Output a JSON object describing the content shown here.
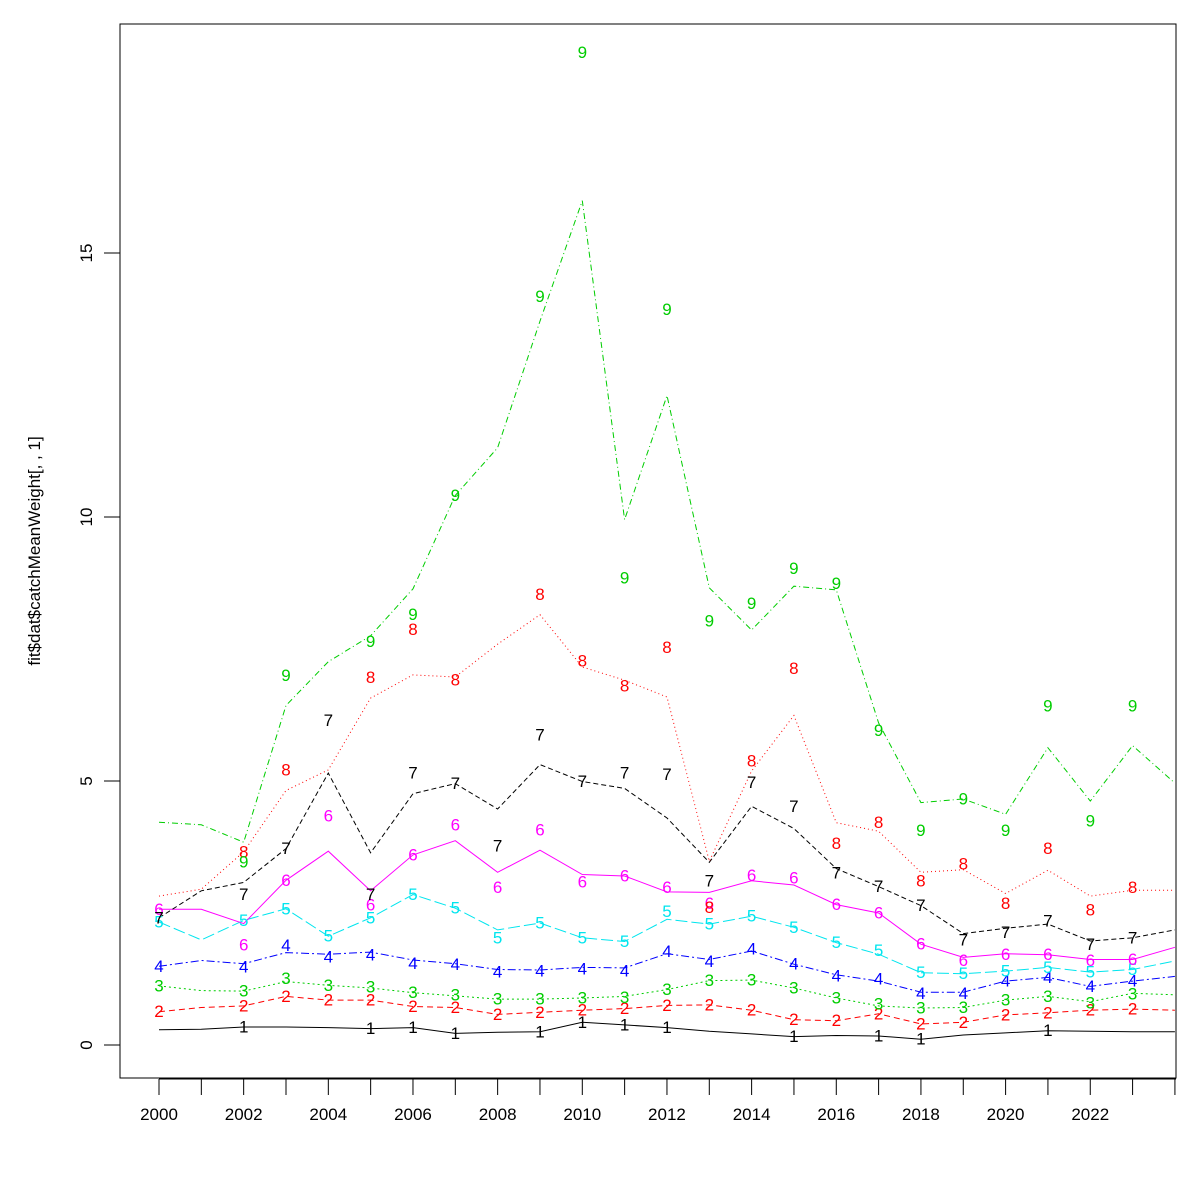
{
  "chart_data": {
    "type": "line",
    "ylabel": "fit$dat$catchMeanWeight[, , 1]",
    "xlabel": "",
    "xlim": [
      2000,
      2024
    ],
    "ylim": [
      0,
      19
    ],
    "x_ticks": [
      2000,
      2002,
      2004,
      2006,
      2008,
      2010,
      2012,
      2014,
      2016,
      2018,
      2020,
      2022
    ],
    "y_ticks": [
      0,
      5,
      10,
      15
    ],
    "x": [
      2000,
      2001,
      2002,
      2003,
      2004,
      2005,
      2006,
      2007,
      2008,
      2009,
      2010,
      2011,
      2012,
      2013,
      2014,
      2015,
      2016,
      2017,
      2018,
      2019,
      2020,
      2021,
      2022,
      2023,
      2024
    ],
    "lines": [
      {
        "color": "#000000",
        "dash": "",
        "values": [
          0.29,
          0.3,
          0.34,
          0.34,
          0.33,
          0.31,
          0.33,
          0.22,
          0.24,
          0.25,
          0.43,
          0.38,
          0.33,
          0.26,
          0.21,
          0.16,
          0.18,
          0.17,
          0.11,
          0.19,
          0.23,
          0.27,
          0.26,
          0.25,
          0.25
        ]
      },
      {
        "color": "#ff0000",
        "dash": "6,4",
        "values": [
          0.63,
          0.71,
          0.74,
          0.92,
          0.85,
          0.85,
          0.73,
          0.71,
          0.58,
          0.62,
          0.66,
          0.69,
          0.75,
          0.76,
          0.66,
          0.48,
          0.46,
          0.59,
          0.4,
          0.43,
          0.57,
          0.61,
          0.66,
          0.68,
          0.66
        ]
      },
      {
        "color": "#00cd00",
        "dash": "2,3",
        "values": [
          1.12,
          1.03,
          1.02,
          1.2,
          1.13,
          1.08,
          0.99,
          0.93,
          0.87,
          0.87,
          0.89,
          0.92,
          1.05,
          1.22,
          1.23,
          1.08,
          0.89,
          0.74,
          0.7,
          0.71,
          0.85,
          0.92,
          0.82,
          0.98,
          0.95
        ]
      },
      {
        "color": "#0000ff",
        "dash": "8,3,2,3",
        "values": [
          1.49,
          1.6,
          1.54,
          1.75,
          1.72,
          1.76,
          1.61,
          1.54,
          1.43,
          1.42,
          1.47,
          1.46,
          1.73,
          1.62,
          1.78,
          1.53,
          1.33,
          1.21,
          1.0,
          1.0,
          1.21,
          1.28,
          1.11,
          1.21,
          1.3
        ]
      },
      {
        "color": "#00e5ee",
        "dash": "12,4",
        "values": [
          2.33,
          1.99,
          2.36,
          2.58,
          2.06,
          2.41,
          2.85,
          2.59,
          2.18,
          2.31,
          2.03,
          1.96,
          2.38,
          2.29,
          2.44,
          2.23,
          1.94,
          1.72,
          1.37,
          1.35,
          1.4,
          1.47,
          1.38,
          1.43,
          1.59
        ]
      },
      {
        "color": "#ff00ff",
        "dash": "",
        "values": [
          2.57,
          2.57,
          2.3,
          3.12,
          3.67,
          2.92,
          3.6,
          3.87,
          3.27,
          3.69,
          3.23,
          3.2,
          2.9,
          2.89,
          3.11,
          3.03,
          2.66,
          2.5,
          1.91,
          1.66,
          1.73,
          1.71,
          1.62,
          1.62,
          1.85
        ]
      },
      {
        "color": "#000000",
        "dash": "5,3",
        "values": [
          2.41,
          2.92,
          3.08,
          3.72,
          5.15,
          3.64,
          4.76,
          4.95,
          4.47,
          5.31,
          4.99,
          4.86,
          4.3,
          3.46,
          4.52,
          4.1,
          3.34,
          3.0,
          2.64,
          2.11,
          2.21,
          2.29,
          1.97,
          2.03,
          2.18
        ]
      },
      {
        "color": "#ff0000",
        "dash": "1,3",
        "values": [
          2.82,
          2.95,
          3.66,
          4.82,
          5.21,
          6.57,
          7.01,
          6.97,
          7.59,
          8.15,
          7.16,
          6.91,
          6.59,
          3.48,
          5.19,
          6.24,
          4.21,
          4.05,
          3.27,
          3.32,
          2.87,
          3.31,
          2.82,
          2.93,
          2.93
        ]
      },
      {
        "color": "#00cd00",
        "dash": "6,3,1,3",
        "values": [
          4.22,
          4.17,
          3.84,
          6.43,
          7.26,
          7.75,
          8.64,
          10.41,
          11.31,
          13.71,
          15.99,
          9.95,
          12.3,
          8.66,
          7.86,
          8.69,
          8.62,
          6.1,
          4.59,
          4.66,
          4.37,
          5.63,
          4.62,
          5.67,
          4.96
        ]
      }
    ],
    "markers": [
      {
        "label": "1",
        "color": "#000000",
        "points": [
          [
            2002,
            0.34
          ],
          [
            2005,
            0.31
          ],
          [
            2006,
            0.33
          ],
          [
            2007,
            0.22
          ],
          [
            2009,
            0.25
          ],
          [
            2010,
            0.43
          ],
          [
            2011,
            0.38
          ],
          [
            2012,
            0.33
          ],
          [
            2015,
            0.16
          ],
          [
            2017,
            0.17
          ],
          [
            2018,
            0.11
          ],
          [
            2021,
            0.27
          ]
        ]
      },
      {
        "label": "2",
        "color": "#ff0000",
        "points": [
          [
            2000,
            0.63
          ],
          [
            2002,
            0.74
          ],
          [
            2003,
            0.92
          ],
          [
            2004,
            0.85
          ],
          [
            2005,
            0.85
          ],
          [
            2006,
            0.73
          ],
          [
            2007,
            0.71
          ],
          [
            2008,
            0.58
          ],
          [
            2009,
            0.62
          ],
          [
            2010,
            0.66
          ],
          [
            2011,
            0.69
          ],
          [
            2012,
            0.75
          ],
          [
            2013,
            0.76
          ],
          [
            2014,
            0.66
          ],
          [
            2015,
            0.48
          ],
          [
            2016,
            0.46
          ],
          [
            2017,
            0.59
          ],
          [
            2018,
            0.4
          ],
          [
            2019,
            0.43
          ],
          [
            2020,
            0.57
          ],
          [
            2021,
            0.61
          ],
          [
            2022,
            0.66
          ],
          [
            2023,
            0.68
          ]
        ]
      },
      {
        "label": "3",
        "color": "#00cd00",
        "points": [
          [
            2000,
            1.12
          ],
          [
            2002,
            1.02
          ],
          [
            2003,
            1.26
          ],
          [
            2004,
            1.13
          ],
          [
            2005,
            1.1
          ],
          [
            2006,
            0.99
          ],
          [
            2007,
            0.95
          ],
          [
            2008,
            0.87
          ],
          [
            2009,
            0.87
          ],
          [
            2010,
            0.89
          ],
          [
            2011,
            0.9
          ],
          [
            2012,
            1.05
          ],
          [
            2013,
            1.22
          ],
          [
            2014,
            1.23
          ],
          [
            2015,
            1.08
          ],
          [
            2016,
            0.89
          ],
          [
            2017,
            0.78
          ],
          [
            2018,
            0.7
          ],
          [
            2019,
            0.71
          ],
          [
            2020,
            0.85
          ],
          [
            2021,
            0.92
          ],
          [
            2022,
            0.8
          ],
          [
            2023,
            0.97
          ]
        ]
      },
      {
        "label": "4",
        "color": "#0000ff",
        "points": [
          [
            2000,
            1.49
          ],
          [
            2002,
            1.48
          ],
          [
            2003,
            1.88
          ],
          [
            2004,
            1.67
          ],
          [
            2005,
            1.7
          ],
          [
            2006,
            1.54
          ],
          [
            2007,
            1.52
          ],
          [
            2008,
            1.38
          ],
          [
            2009,
            1.4
          ],
          [
            2010,
            1.44
          ],
          [
            2011,
            1.4
          ],
          [
            2012,
            1.77
          ],
          [
            2013,
            1.58
          ],
          [
            2014,
            1.82
          ],
          [
            2015,
            1.53
          ],
          [
            2016,
            1.31
          ],
          [
            2017,
            1.25
          ],
          [
            2018,
            0.98
          ],
          [
            2019,
            0.98
          ],
          [
            2020,
            1.21
          ],
          [
            2021,
            1.28
          ],
          [
            2022,
            1.11
          ],
          [
            2023,
            1.21
          ]
        ]
      },
      {
        "label": "5",
        "color": "#00e5ee",
        "points": [
          [
            2000,
            2.33
          ],
          [
            2002,
            2.36
          ],
          [
            2003,
            2.58
          ],
          [
            2004,
            2.06
          ],
          [
            2005,
            2.41
          ],
          [
            2006,
            2.85
          ],
          [
            2007,
            2.59
          ],
          [
            2008,
            2.03
          ],
          [
            2009,
            2.31
          ],
          [
            2010,
            2.03
          ],
          [
            2011,
            1.96
          ],
          [
            2012,
            2.53
          ],
          [
            2013,
            2.29
          ],
          [
            2014,
            2.44
          ],
          [
            2015,
            2.23
          ],
          [
            2016,
            1.94
          ],
          [
            2017,
            1.79
          ],
          [
            2018,
            1.37
          ],
          [
            2019,
            1.35
          ],
          [
            2020,
            1.4
          ],
          [
            2021,
            1.47
          ],
          [
            2022,
            1.38
          ],
          [
            2023,
            1.43
          ]
        ]
      },
      {
        "label": "6",
        "color": "#ff00ff",
        "points": [
          [
            2000,
            2.57
          ],
          [
            2002,
            1.89
          ],
          [
            2003,
            3.12
          ],
          [
            2004,
            4.34
          ],
          [
            2005,
            2.65
          ],
          [
            2006,
            3.6
          ],
          [
            2007,
            4.17
          ],
          [
            2008,
            2.98
          ],
          [
            2009,
            4.07
          ],
          [
            2010,
            3.09
          ],
          [
            2011,
            3.2
          ],
          [
            2012,
            2.98
          ],
          [
            2013,
            2.68
          ],
          [
            2014,
            3.21
          ],
          [
            2015,
            3.16
          ],
          [
            2016,
            2.66
          ],
          [
            2017,
            2.5
          ],
          [
            2018,
            1.91
          ],
          [
            2019,
            1.6
          ],
          [
            2020,
            1.71
          ],
          [
            2021,
            1.71
          ],
          [
            2022,
            1.6
          ],
          [
            2023,
            1.62
          ]
        ]
      },
      {
        "label": "7",
        "color": "#000000",
        "points": [
          [
            2000,
            2.41
          ],
          [
            2002,
            2.85
          ],
          [
            2003,
            3.72
          ],
          [
            2004,
            6.15
          ],
          [
            2005,
            2.85
          ],
          [
            2006,
            5.15
          ],
          [
            2007,
            4.95
          ],
          [
            2008,
            3.77
          ],
          [
            2009,
            5.87
          ],
          [
            2010,
            4.99
          ],
          [
            2011,
            5.15
          ],
          [
            2012,
            5.12
          ],
          [
            2013,
            3.11
          ],
          [
            2014,
            4.97
          ],
          [
            2015,
            4.52
          ],
          [
            2016,
            3.26
          ],
          [
            2017,
            3.0
          ],
          [
            2018,
            2.64
          ],
          [
            2019,
            1.99
          ],
          [
            2020,
            2.13
          ],
          [
            2021,
            2.35
          ],
          [
            2022,
            1.9
          ],
          [
            2023,
            2.03
          ]
        ]
      },
      {
        "label": "8",
        "color": "#ff0000",
        "points": [
          [
            2002,
            3.66
          ],
          [
            2003,
            5.21
          ],
          [
            2005,
            6.96
          ],
          [
            2006,
            7.87
          ],
          [
            2007,
            6.91
          ],
          [
            2009,
            8.53
          ],
          [
            2010,
            7.27
          ],
          [
            2011,
            6.8
          ],
          [
            2012,
            7.53
          ],
          [
            2013,
            2.6
          ],
          [
            2014,
            5.38
          ],
          [
            2015,
            7.13
          ],
          [
            2016,
            3.82
          ],
          [
            2017,
            4.21
          ],
          [
            2018,
            3.11
          ],
          [
            2019,
            3.43
          ],
          [
            2020,
            2.68
          ],
          [
            2021,
            3.72
          ],
          [
            2022,
            2.56
          ],
          [
            2023,
            2.98
          ]
        ]
      },
      {
        "label": "9",
        "color": "#00cd00",
        "points": [
          [
            2002,
            3.47
          ],
          [
            2003,
            7.0
          ],
          [
            2005,
            7.64
          ],
          [
            2006,
            8.15
          ],
          [
            2007,
            10.41
          ],
          [
            2009,
            14.18
          ],
          [
            2010,
            18.8
          ],
          [
            2011,
            8.84
          ],
          [
            2012,
            13.93
          ],
          [
            2013,
            8.03
          ],
          [
            2014,
            8.36
          ],
          [
            2015,
            9.02
          ],
          [
            2016,
            8.74
          ],
          [
            2017,
            5.96
          ],
          [
            2018,
            4.06
          ],
          [
            2019,
            4.66
          ],
          [
            2020,
            4.06
          ],
          [
            2021,
            6.42
          ],
          [
            2022,
            4.24
          ],
          [
            2023,
            6.42
          ]
        ]
      }
    ]
  }
}
